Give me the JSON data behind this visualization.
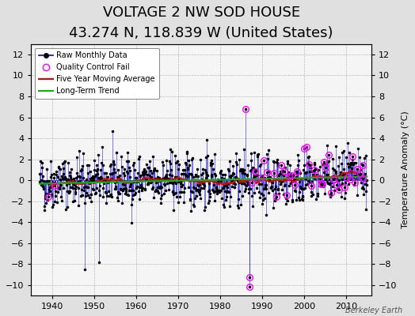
{
  "title": "VOLTAGE 2 NW SOD HOUSE",
  "subtitle": "43.274 N, 118.839 W (United States)",
  "ylabel": "Temperature Anomaly (°C)",
  "watermark": "Berkeley Earth",
  "ylim": [
    -11,
    13
  ],
  "yticks": [
    -10,
    -8,
    -6,
    -4,
    -2,
    0,
    2,
    4,
    6,
    8,
    10,
    12
  ],
  "xlim": [
    1935,
    2016
  ],
  "xticks": [
    1940,
    1950,
    1960,
    1970,
    1980,
    1990,
    2000,
    2010
  ],
  "bg_color": "#e0e0e0",
  "plot_bg_color": "#f5f5f5",
  "raw_line_color": "#0000dd",
  "raw_dot_color": "#000000",
  "qc_fail_color": "#ff00ff",
  "moving_avg_color": "#dd0000",
  "trend_color": "#00bb00",
  "seed": 42,
  "start_year": 1937,
  "end_year": 2014,
  "title_fontsize": 13,
  "subtitle_fontsize": 9,
  "label_fontsize": 8,
  "tick_fontsize": 8
}
